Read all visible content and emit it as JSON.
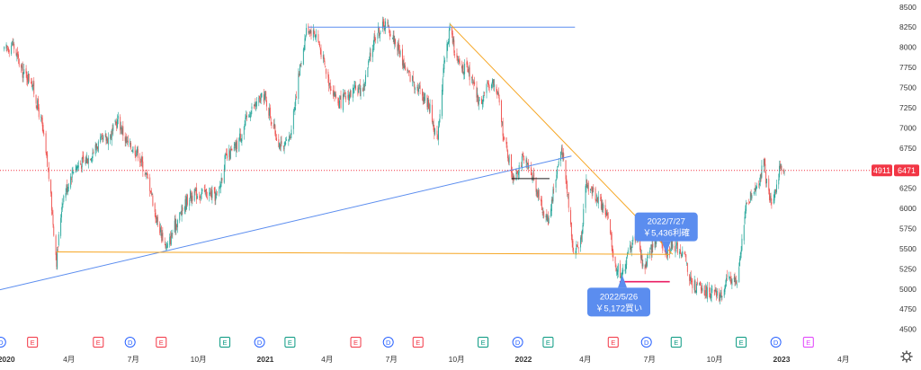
{
  "chart_data": {
    "type": "candlestick",
    "ticker": "4911",
    "last_price": "6471",
    "y_ticks": [
      "8500",
      "8250",
      "8000",
      "7750",
      "7500",
      "7250",
      "7000",
      "6750",
      "6500",
      "6250",
      "6000",
      "5750",
      "5500",
      "5250",
      "5000",
      "4750",
      "4500"
    ],
    "ylim": [
      4440,
      8520
    ],
    "x_ticks": [
      {
        "label": "2020",
        "date": "2020-01-01",
        "bold": true
      },
      {
        "label": "4月",
        "date": "2020-04-01",
        "bold": false
      },
      {
        "label": "7月",
        "date": "2020-07-01",
        "bold": false
      },
      {
        "label": "10月",
        "date": "2020-10-01",
        "bold": false
      },
      {
        "label": "2021",
        "date": "2021-01-01",
        "bold": true
      },
      {
        "label": "4月",
        "date": "2021-04-01",
        "bold": false
      },
      {
        "label": "7月",
        "date": "2021-07-01",
        "bold": false
      },
      {
        "label": "10月",
        "date": "2021-10-01",
        "bold": false
      },
      {
        "label": "2022",
        "date": "2022-01-01",
        "bold": true
      },
      {
        "label": "4月",
        "date": "2022-04-01",
        "bold": false
      },
      {
        "label": "7月",
        "date": "2022-07-01",
        "bold": false
      },
      {
        "label": "10月",
        "date": "2022-10-01",
        "bold": false
      },
      {
        "label": "2023",
        "date": "2023-01-01",
        "bold": true
      },
      {
        "label": "4月",
        "date": "2023-04-01",
        "bold": false
      }
    ],
    "xlim": [
      "2019-12-28",
      "2023-05-12"
    ],
    "price_path": [
      [
        "2020-01-03",
        7950
      ],
      [
        "2020-01-15",
        8050
      ],
      [
        "2020-01-28",
        7700
      ],
      [
        "2020-02-10",
        7600
      ],
      [
        "2020-02-25",
        7050
      ],
      [
        "2020-03-06",
        6400
      ],
      [
        "2020-03-17",
        5350
      ],
      [
        "2020-03-25",
        6100
      ],
      [
        "2020-04-10",
        6500
      ],
      [
        "2020-04-28",
        6600
      ],
      [
        "2020-05-15",
        6800
      ],
      [
        "2020-06-01",
        6900
      ],
      [
        "2020-06-12",
        7100
      ],
      [
        "2020-06-25",
        6800
      ],
      [
        "2020-07-10",
        6700
      ],
      [
        "2020-07-28",
        6250
      ],
      [
        "2020-08-04",
        5900
      ],
      [
        "2020-08-20",
        5500
      ],
      [
        "2020-09-01",
        5800
      ],
      [
        "2020-09-20",
        6150
      ],
      [
        "2020-10-10",
        6200
      ],
      [
        "2020-10-31",
        6150
      ],
      [
        "2020-11-10",
        6600
      ],
      [
        "2020-11-25",
        6750
      ],
      [
        "2020-12-15",
        7200
      ],
      [
        "2021-01-05",
        7400
      ],
      [
        "2021-01-20",
        6950
      ],
      [
        "2021-01-31",
        6700
      ],
      [
        "2021-02-10",
        6900
      ],
      [
        "2021-02-25",
        7800
      ],
      [
        "2021-03-06",
        8250
      ],
      [
        "2021-03-20",
        8150
      ],
      [
        "2021-04-05",
        7600
      ],
      [
        "2021-04-20",
        7300
      ],
      [
        "2021-05-10",
        7450
      ],
      [
        "2021-05-25",
        7500
      ],
      [
        "2021-06-10",
        8150
      ],
      [
        "2021-06-25",
        8300
      ],
      [
        "2021-07-10",
        8050
      ],
      [
        "2021-07-25",
        7700
      ],
      [
        "2021-08-10",
        7500
      ],
      [
        "2021-08-25",
        7300
      ],
      [
        "2021-09-06",
        6850
      ],
      [
        "2021-09-15",
        7700
      ],
      [
        "2021-09-24",
        8250
      ],
      [
        "2021-10-05",
        7800
      ],
      [
        "2021-10-20",
        7700
      ],
      [
        "2021-11-05",
        7300
      ],
      [
        "2021-11-22",
        7600
      ],
      [
        "2021-12-01",
        7400
      ],
      [
        "2021-12-10",
        6850
      ],
      [
        "2021-12-22",
        6400
      ],
      [
        "2022-01-05",
        6600
      ],
      [
        "2022-01-20",
        6400
      ],
      [
        "2022-02-01",
        6000
      ],
      [
        "2022-02-10",
        5850
      ],
      [
        "2022-02-20",
        6350
      ],
      [
        "2022-03-01",
        6750
      ],
      [
        "2022-03-10",
        6150
      ],
      [
        "2022-03-18",
        5450
      ],
      [
        "2022-03-28",
        5600
      ],
      [
        "2022-04-05",
        6300
      ],
      [
        "2022-04-20",
        6150
      ],
      [
        "2022-05-05",
        5900
      ],
      [
        "2022-05-15",
        5300
      ],
      [
        "2022-05-26",
        5172
      ],
      [
        "2022-06-05",
        5500
      ],
      [
        "2022-06-15",
        5700
      ],
      [
        "2022-06-25",
        5250
      ],
      [
        "2022-07-05",
        5450
      ],
      [
        "2022-07-15",
        5700
      ],
      [
        "2022-07-27",
        5436
      ],
      [
        "2022-08-05",
        5550
      ],
      [
        "2022-08-20",
        5450
      ],
      [
        "2022-09-01",
        5050
      ],
      [
        "2022-09-15",
        5000
      ],
      [
        "2022-09-30",
        4950
      ],
      [
        "2022-10-10",
        4900
      ],
      [
        "2022-10-25",
        5150
      ],
      [
        "2022-11-05",
        5050
      ],
      [
        "2022-11-15",
        5950
      ],
      [
        "2022-11-25",
        6200
      ],
      [
        "2022-12-05",
        6350
      ],
      [
        "2022-12-12",
        6550
      ],
      [
        "2022-12-20",
        6100
      ],
      [
        "2022-12-26",
        6150
      ],
      [
        "2023-01-04",
        6500
      ],
      [
        "2023-01-10",
        6471
      ]
    ],
    "trendlines": [
      {
        "name": "top-resistance-line",
        "color": "#5b8def",
        "points": [
          [
            "2021-03-08",
            8250
          ],
          [
            "2022-03-20",
            8250
          ]
        ]
      },
      {
        "name": "rising-support-line",
        "color": "#5b8def",
        "points": [
          [
            "2019-12-28",
            4990
          ],
          [
            "2022-03-15",
            6650
          ]
        ]
      },
      {
        "name": "falling-resistance-line",
        "color": "#f6a623",
        "points": [
          [
            "2021-09-24",
            8290
          ],
          [
            "2022-08-05",
            5430
          ]
        ]
      },
      {
        "name": "horizontal-support-line",
        "color": "#f6a623",
        "points": [
          [
            "2020-03-17",
            5460
          ],
          [
            "2022-08-01",
            5430
          ]
        ]
      },
      {
        "name": "short-black-line",
        "color": "#1a1a1a",
        "points": [
          [
            "2021-12-20",
            6370
          ],
          [
            "2022-02-12",
            6370
          ]
        ]
      },
      {
        "name": "short-red-line",
        "color": "#e91e63",
        "points": [
          [
            "2022-05-22",
            5090
          ],
          [
            "2022-08-01",
            5090
          ]
        ]
      }
    ],
    "annotations": [
      {
        "name": "sell-annotation",
        "line1": "2022/7/27",
        "line2": "￥5,436利確",
        "date": "2022-07-27",
        "price": 5436,
        "placement": "above"
      },
      {
        "name": "buy-annotation",
        "line1": "2022/5/26",
        "line2": "￥5,172買い",
        "date": "2022-05-26",
        "price": 5172,
        "placement": "below"
      }
    ],
    "event_markers": [
      {
        "type": "D",
        "date": "2019-12-29"
      },
      {
        "type": "E",
        "date": "2020-02-12"
      },
      {
        "type": "E",
        "date": "2020-05-15"
      },
      {
        "type": "D",
        "date": "2020-06-29"
      },
      {
        "type": "E",
        "date": "2020-08-12"
      },
      {
        "type": "E",
        "date": "2020-11-10"
      },
      {
        "type": "D",
        "date": "2020-12-29"
      },
      {
        "type": "E",
        "date": "2021-02-10"
      },
      {
        "type": "E",
        "date": "2021-05-14"
      },
      {
        "type": "D",
        "date": "2021-06-29"
      },
      {
        "type": "E",
        "date": "2021-08-10"
      },
      {
        "type": "E",
        "date": "2021-11-10"
      },
      {
        "type": "D",
        "date": "2021-12-29"
      },
      {
        "type": "E",
        "date": "2022-02-10"
      },
      {
        "type": "E",
        "date": "2022-05-13"
      },
      {
        "type": "D",
        "date": "2022-06-29"
      },
      {
        "type": "E",
        "date": "2022-08-10"
      },
      {
        "type": "E",
        "date": "2022-11-10"
      },
      {
        "type": "D",
        "date": "2022-12-29"
      },
      {
        "type": "E",
        "date": "2023-02-13"
      }
    ],
    "marker_colors": {
      "D": "#2962ff",
      "E_red": "#f23645",
      "E_green": "#089981",
      "E_purple": "#e040fb"
    },
    "event_marker_color_by_date": {
      "2020-02-12": "E_red",
      "2020-05-15": "E_red",
      "2020-08-12": "E_red",
      "2020-11-10": "E_green",
      "2021-02-10": "E_green",
      "2021-05-14": "E_red",
      "2021-08-10": "E_red",
      "2021-11-10": "E_green",
      "2022-02-10": "E_green",
      "2022-05-13": "E_red",
      "2022-08-10": "E_green",
      "2022-11-10": "E_green",
      "2023-02-13": "E_purple"
    },
    "colors": {
      "up": "#26a69a",
      "down": "#ef5350",
      "price_label": "#f23645",
      "annotation": "#5b8def"
    },
    "grid": false
  }
}
